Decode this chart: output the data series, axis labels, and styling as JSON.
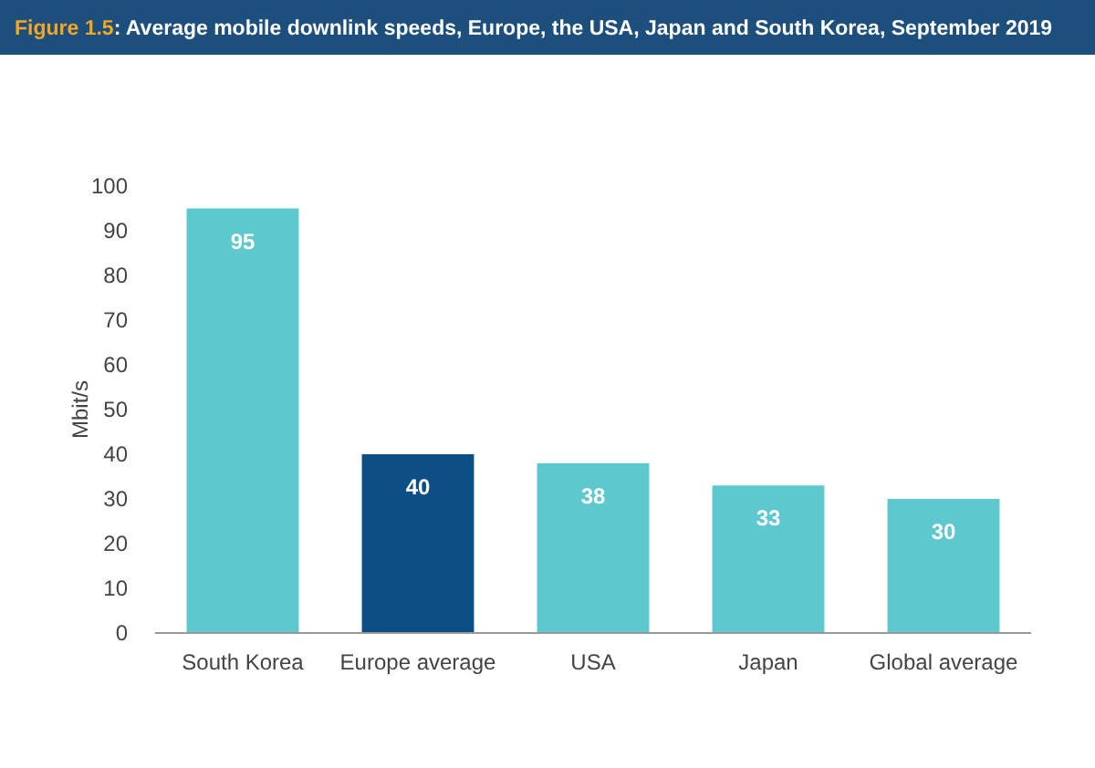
{
  "chart_data": {
    "type": "bar",
    "title": "Figure 1.5: Average mobile downlink speeds, Europe, the USA, Japan and South Korea, September 2019",
    "categories": [
      "South Korea",
      "Europe average",
      "USA",
      "Japan",
      "Global average"
    ],
    "values": [
      95,
      40,
      38,
      33,
      30
    ],
    "colors": [
      "#5ec8cf",
      "#0b4f85",
      "#5ec8cf",
      "#5ec8cf",
      "#5ec8cf"
    ],
    "ylabel": "Mbit/s",
    "ylim": [
      0,
      100
    ],
    "yticks": [
      0,
      10,
      20,
      30,
      40,
      50,
      60,
      70,
      80,
      90,
      100
    ],
    "data_labels": true,
    "grid": false
  }
}
